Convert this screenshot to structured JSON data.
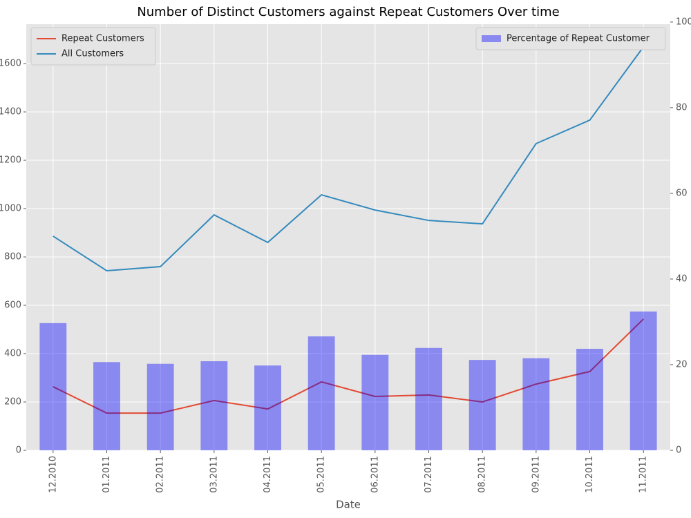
{
  "chart_data": {
    "type": "bar_line_dual_axis",
    "title": "Number of Distinct Customers against Repeat Customers Over time",
    "x_label": "Date",
    "categories": [
      "12.2010",
      "01.2011",
      "02.2011",
      "03.2011",
      "04.2011",
      "05.2011",
      "06.2011",
      "07.2011",
      "08.2011",
      "09.2011",
      "10.2011",
      "11.2011"
    ],
    "series": [
      {
        "name": "Repeat Customers",
        "type": "line",
        "color": "#E24A33",
        "axis": "y",
        "values": [
          263,
          154,
          154,
          206,
          171,
          283,
          223,
          229,
          200,
          274,
          326,
          543
        ]
      },
      {
        "name": "All Customers",
        "type": "line",
        "color": "#348ABD",
        "axis": "y",
        "values": [
          886,
          743,
          760,
          974,
          860,
          1057,
          994,
          951,
          937,
          1269,
          1366,
          1669
        ]
      },
      {
        "name": "Percentage of Repeat Customer",
        "type": "bar",
        "color": "#0000ff",
        "axis": "y2",
        "values": [
          29.7,
          20.6,
          20.2,
          20.8,
          19.8,
          26.6,
          22.3,
          23.9,
          21.1,
          21.5,
          23.7,
          32.4
        ]
      }
    ],
    "ylim": [
      0,
      1763
    ],
    "yticks": [
      0,
      200,
      400,
      600,
      800,
      1000,
      1200,
      1400,
      1600
    ],
    "y2lim": [
      0,
      99.5
    ],
    "y2ticks": [
      0,
      20,
      40,
      60,
      80,
      100
    ],
    "grid": true,
    "legend_lines": "upper left",
    "legend_bars": "upper right"
  }
}
